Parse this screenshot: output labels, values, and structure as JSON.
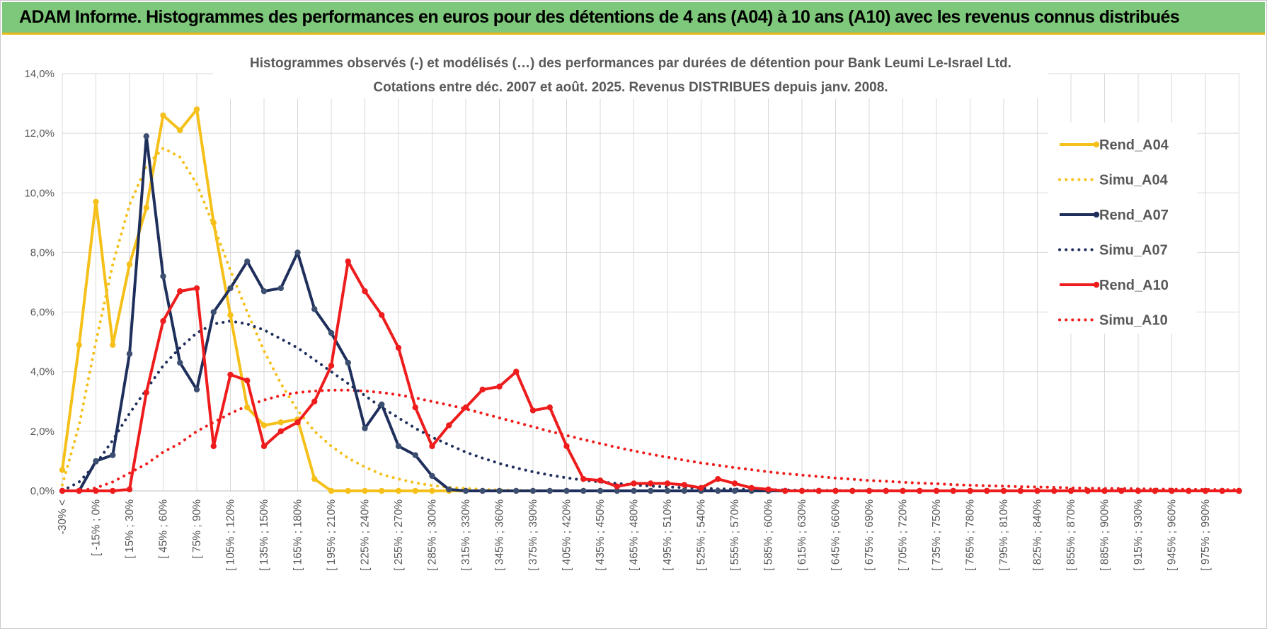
{
  "banner": {
    "title": "ADAM Informe. Histogrammes des performances en euros pour des détentions de 4 ans (A04) à 10 ans (A10) avec les revenus connus distribués"
  },
  "colors": {
    "banner_bg": "#7dc87a",
    "banner_accent": "#e9b81c",
    "a04": "#f5c01a",
    "a07": "#1f2f5c",
    "a10": "#ee1c1c",
    "grid": "#d9d9d9",
    "text": "#595959"
  },
  "chart_data": {
    "type": "line",
    "title_lines": [
      "Histogrammes observés (-) et modélisés (…) des performances par durées de détention pour Bank Leumi Le-Israel Ltd.",
      "Cotations entre déc. 2007 et août. 2025. Revenus DISTRIBUES depuis janv. 2008."
    ],
    "ylim": [
      0,
      14
    ],
    "y_unit": "%",
    "y_ticks": [
      "0,0%",
      "2,0%",
      "4,0%",
      "6,0%",
      "8,0%",
      "10,0%",
      "12,0%",
      "14,0%"
    ],
    "grid": true,
    "legend_position": "right",
    "x_labels": [
      "-30% <",
      "[ -15% ; 0% ",
      "[ 15% ; 30% ",
      "[ 45% ; 60% ",
      "[ 75% ; 90% ",
      "[ 105% ; 120% ",
      "[ 135% ; 150% ",
      "[ 165% ; 180% ",
      "[ 195% ; 210% ",
      "[ 225% ; 240% ",
      "[ 255% ; 270% ",
      "[ 285% ; 300% ",
      "[ 315% ; 330% ",
      "[ 345% ; 360% ",
      "[ 375% ; 390% ",
      "[ 405% ; 420% ",
      "[ 435% ; 450% ",
      "[ 465% ; 480% ",
      "[ 495% ; 510% ",
      "[ 525% ; 540% ",
      "[ 555% ; 570% ",
      "[ 585% ; 600% ",
      "[ 615% ; 630% ",
      "[ 645% ; 660% ",
      "[ 675% ; 690% ",
      "[ 705% ; 720% ",
      "[ 735% ; 750% ",
      "[ 765% ; 780% ",
      "[ 795% ; 810% ",
      "[ 825% ; 840% ",
      "[ 855% ; 870% ",
      "[ 885% ; 900% ",
      "[ 915% ; 930% ",
      "[ 945% ; 960% ",
      "[ 975% ; 990% "
    ],
    "series": [
      {
        "name": "Rend_A04",
        "style": "solid",
        "markers": true,
        "color": "#f5c01a",
        "values": [
          0.7,
          4.9,
          9.7,
          4.9,
          7.6,
          9.5,
          12.6,
          12.1,
          12.8,
          9.0,
          5.9,
          2.8,
          2.2,
          2.3,
          2.4,
          0.4,
          0,
          0,
          0,
          0,
          0,
          0,
          0,
          0,
          0,
          0,
          0,
          0,
          0,
          0,
          0,
          0,
          0,
          0,
          0,
          0,
          0,
          0,
          0,
          0,
          0,
          0,
          0,
          0,
          0,
          0,
          0,
          0,
          0,
          0,
          0,
          0,
          0,
          0,
          0,
          0,
          0,
          0,
          0,
          0,
          0,
          0,
          0,
          0,
          0,
          0,
          0,
          0,
          0,
          0,
          0
        ]
      },
      {
        "name": "Simu_A04",
        "style": "dotted",
        "markers": false,
        "color": "#f5c01a",
        "values": [
          0.2,
          2.2,
          5.0,
          7.6,
          9.6,
          10.9,
          11.5,
          11.2,
          10.3,
          8.9,
          7.4,
          6.0,
          4.7,
          3.6,
          2.7,
          2.0,
          1.5,
          1.1,
          0.8,
          0.55,
          0.4,
          0.27,
          0.18,
          0.12,
          0.08,
          0.05,
          0.03,
          0.02,
          0.01,
          0.01,
          0,
          0,
          0,
          0,
          0,
          0,
          0,
          0,
          0,
          0,
          0,
          0,
          0,
          0,
          0,
          0,
          0,
          0,
          0,
          0,
          0,
          0,
          0,
          0,
          0,
          0,
          0,
          0,
          0,
          0,
          0,
          0,
          0,
          0,
          0,
          0,
          0,
          0,
          0,
          0,
          0
        ]
      },
      {
        "name": "Rend_A07",
        "style": "solid",
        "markers": true,
        "color": "#1f2f5c",
        "values": [
          0,
          0,
          1.0,
          1.2,
          4.6,
          11.9,
          7.2,
          4.3,
          3.4,
          6.0,
          6.8,
          7.7,
          6.7,
          6.8,
          8.0,
          6.1,
          5.3,
          4.3,
          2.1,
          2.9,
          1.5,
          1.2,
          0.5,
          0.05,
          0,
          0,
          0,
          0,
          0,
          0,
          0,
          0,
          0,
          0,
          0,
          0,
          0,
          0,
          0,
          0,
          0,
          0,
          0,
          0,
          0,
          0,
          0,
          0,
          0,
          0,
          0,
          0,
          0,
          0,
          0,
          0,
          0,
          0,
          0,
          0,
          0,
          0,
          0,
          0,
          0,
          0,
          0,
          0,
          0,
          0,
          0
        ]
      },
      {
        "name": "Simu_A07",
        "style": "dotted",
        "markers": false,
        "color": "#1f2f5c",
        "values": [
          0,
          0.3,
          0.9,
          1.7,
          2.6,
          3.4,
          4.2,
          4.8,
          5.3,
          5.6,
          5.7,
          5.6,
          5.4,
          5.1,
          4.8,
          4.4,
          4.0,
          3.6,
          3.2,
          2.8,
          2.45,
          2.1,
          1.8,
          1.55,
          1.3,
          1.1,
          0.92,
          0.77,
          0.64,
          0.53,
          0.44,
          0.36,
          0.3,
          0.25,
          0.2,
          0.16,
          0.13,
          0.11,
          0.09,
          0.07,
          0.06,
          0.05,
          0.04,
          0.03,
          0.02,
          0.02,
          0.01,
          0.01,
          0.01,
          0.01,
          0,
          0,
          0,
          0,
          0,
          0,
          0,
          0,
          0,
          0,
          0,
          0,
          0,
          0,
          0,
          0,
          0,
          0,
          0,
          0,
          0
        ]
      },
      {
        "name": "Rend_A10",
        "style": "solid",
        "markers": true,
        "color": "#ee1c1c",
        "values": [
          0,
          0,
          0,
          0,
          0.05,
          3.3,
          5.7,
          6.7,
          6.8,
          1.5,
          3.9,
          3.7,
          1.5,
          2.0,
          2.3,
          3.0,
          4.2,
          7.7,
          6.7,
          5.9,
          4.8,
          2.8,
          1.5,
          2.2,
          2.8,
          3.4,
          3.5,
          4.0,
          2.7,
          2.8,
          1.5,
          0.4,
          0.35,
          0.15,
          0.25,
          0.25,
          0.25,
          0.2,
          0.1,
          0.4,
          0.25,
          0.1,
          0.05,
          0,
          0,
          0,
          0,
          0,
          0,
          0,
          0,
          0,
          0,
          0,
          0,
          0,
          0,
          0,
          0,
          0,
          0,
          0,
          0,
          0,
          0,
          0,
          0,
          0,
          0,
          0,
          0
        ]
      },
      {
        "name": "Simu_A10",
        "style": "dotted",
        "markers": false,
        "color": "#ee1c1c",
        "values": [
          0,
          0,
          0.1,
          0.3,
          0.6,
          0.9,
          1.3,
          1.6,
          2.0,
          2.3,
          2.6,
          2.85,
          3.05,
          3.2,
          3.3,
          3.35,
          3.38,
          3.38,
          3.35,
          3.3,
          3.22,
          3.12,
          3.0,
          2.88,
          2.75,
          2.6,
          2.45,
          2.3,
          2.15,
          2.0,
          1.86,
          1.72,
          1.59,
          1.46,
          1.34,
          1.23,
          1.13,
          1.03,
          0.94,
          0.86,
          0.78,
          0.71,
          0.64,
          0.58,
          0.53,
          0.48,
          0.43,
          0.39,
          0.35,
          0.32,
          0.29,
          0.26,
          0.24,
          0.21,
          0.19,
          0.17,
          0.16,
          0.14,
          0.13,
          0.12,
          0.1,
          0.09,
          0.08,
          0.08,
          0.07,
          0.06,
          0.06,
          0.05,
          0.05,
          0.04,
          0.04
        ]
      }
    ]
  }
}
